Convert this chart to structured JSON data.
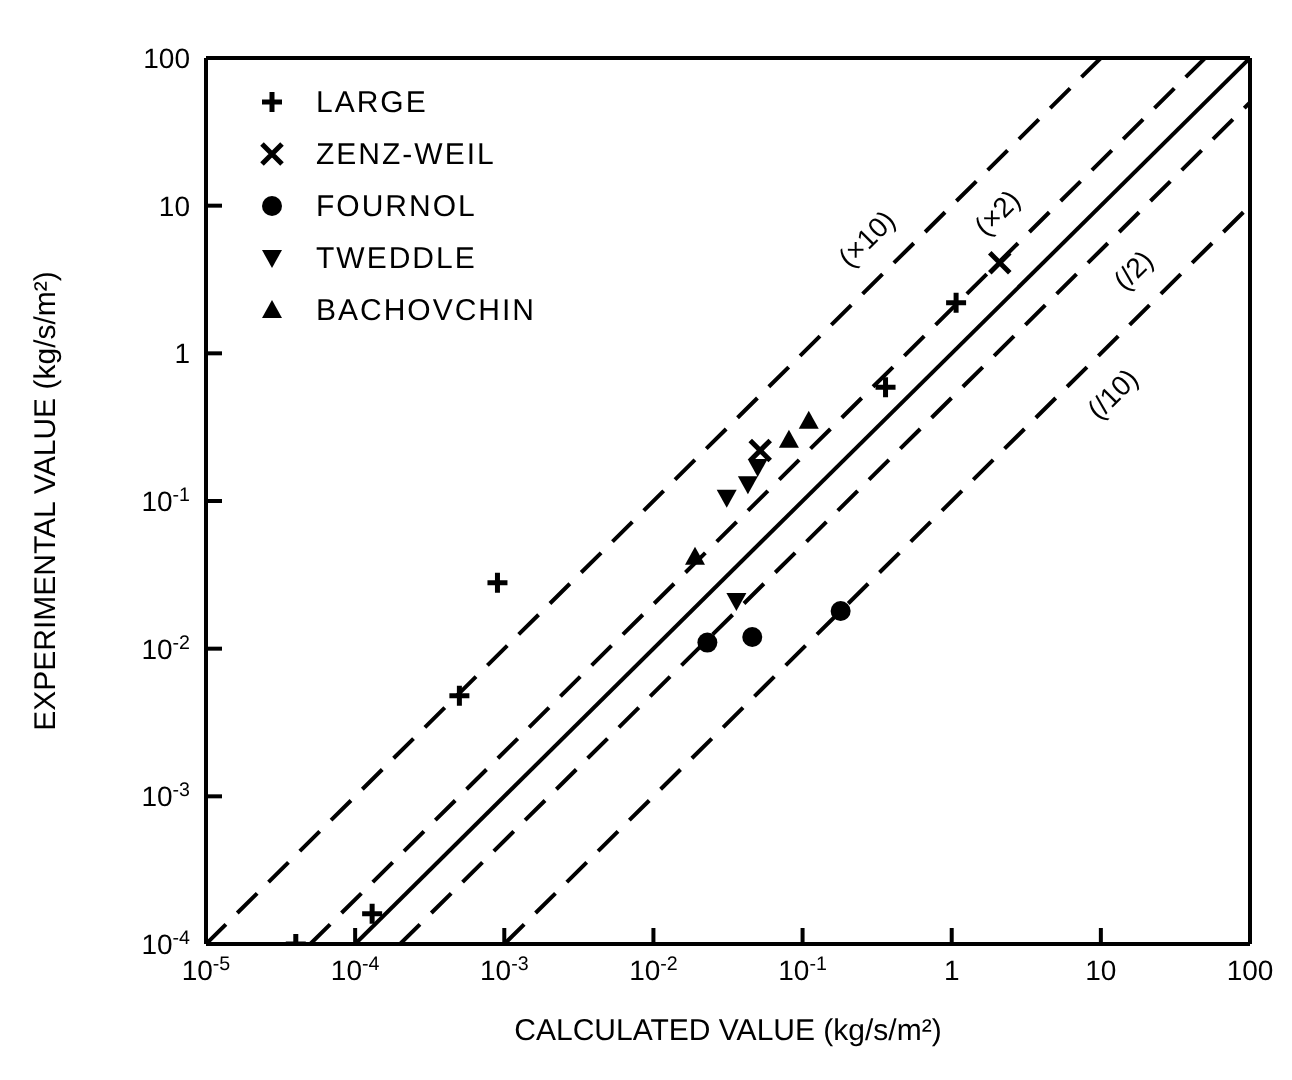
{
  "chart_data": {
    "type": "scatter",
    "xlabel": "CALCULATED VALUE (kg/s/m²)",
    "ylabel": "EXPERIMENTAL VALUE (kg/s/m²)",
    "xlim": [
      1e-05,
      100
    ],
    "ylim": [
      0.0001,
      100
    ],
    "xticks": [
      {
        "value": 1e-05,
        "label": "10$^{-5}$"
      },
      {
        "value": 0.0001,
        "label": "10$^{-4}$"
      },
      {
        "value": 0.001,
        "label": "10$^{-3}$"
      },
      {
        "value": 0.01,
        "label": "10$^{-2}$"
      },
      {
        "value": 0.1,
        "label": "10$^{-1}$"
      },
      1,
      10,
      100
    ],
    "yticks": [
      {
        "value": 0.0001,
        "label": "10$^{-4}$"
      },
      {
        "value": 0.001,
        "label": "10$^{-3}$"
      },
      {
        "value": 0.01,
        "label": "10$^{-2}$"
      },
      {
        "value": 0.1,
        "label": "10$^{-1}$"
      },
      1,
      10,
      100
    ],
    "log": "xy",
    "legend": "top left",
    "grid": false,
    "series": [
      {
        "name": "LARGE",
        "color": "#000000",
        "marker": "cross",
        "x": [
          4e-05,
          0.00013,
          0.0005,
          0.0009,
          0.36,
          1.07
        ],
        "values": [
          0.0001,
          0.00016,
          0.0048,
          0.028,
          0.59,
          2.2
        ]
      },
      {
        "name": "ZENZ-WEIL",
        "color": "#000000",
        "marker": "x",
        "x": [
          0.052,
          2.1
        ],
        "values": [
          0.22,
          4.1
        ]
      },
      {
        "name": "FOURNOL",
        "color": "#000000",
        "marker": "circle",
        "x": [
          0.023,
          0.046,
          0.18
        ],
        "values": [
          0.011,
          0.012,
          0.018
        ]
      },
      {
        "name": "TWEDDLE",
        "color": "#000000",
        "marker": "triangle_down",
        "x": [
          0.031,
          0.043,
          0.05,
          0.036
        ],
        "values": [
          0.105,
          0.13,
          0.17,
          0.021
        ]
      },
      {
        "name": "BACHOVCHIN",
        "color": "#000000",
        "marker": "triangle",
        "x": [
          0.019,
          0.081,
          0.11
        ],
        "values": [
          0.042,
          0.26,
          0.35
        ]
      },
      {
        "type": "line",
        "color": "#000000",
        "line_style": "solid",
        "x": [
          0.0001,
          100
        ],
        "values": [
          0.0001,
          100
        ]
      },
      {
        "type": "line",
        "color": "#000000",
        "line_style": "dashed",
        "x": [
          5e-05,
          50
        ],
        "values": [
          0.0001,
          100
        ]
      },
      {
        "type": "line",
        "color": "#000000",
        "line_style": "dashed",
        "x": [
          0.0002,
          100
        ],
        "values": [
          0.0001,
          50
        ]
      },
      {
        "type": "line",
        "color": "#000000",
        "line_style": "dashed",
        "x": [
          1e-05,
          10
        ],
        "values": [
          0.0001,
          100
        ]
      },
      {
        "type": "line",
        "color": "#000000",
        "line_style": "dashed",
        "x": [
          0.001,
          100
        ],
        "values": [
          0.0001,
          10
        ]
      }
    ],
    "annotations": [
      {
        "text": "(×10)",
        "x": 0.4,
        "y": 4
      },
      {
        "text": "(×2)",
        "x": 3,
        "y": 6
      },
      {
        "text": "(/2)",
        "x": 11,
        "y": 5.5
      },
      {
        "text": "(/10)",
        "x": 8,
        "y": 0.8
      }
    ]
  }
}
